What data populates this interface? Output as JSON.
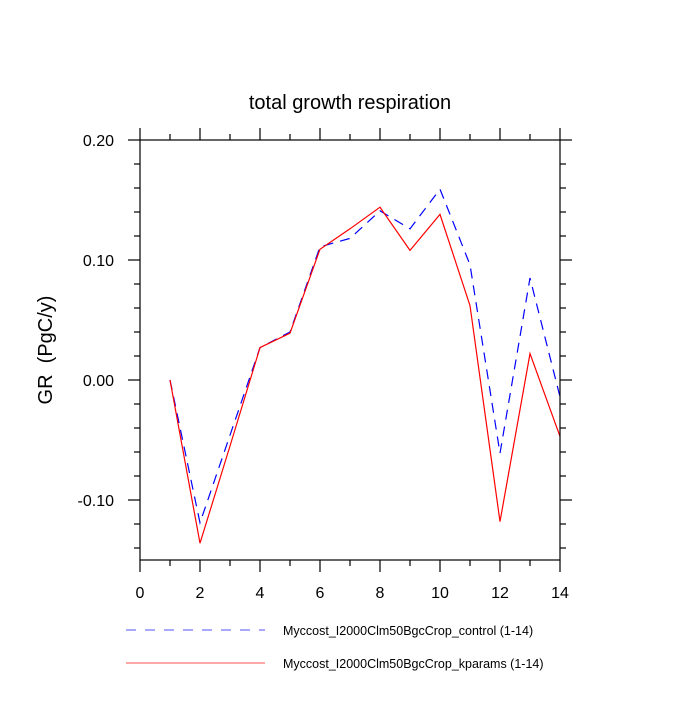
{
  "chart_data": {
    "type": "line",
    "title": "total growth respiration",
    "xlabel": "",
    "ylabel": "GR  (PgC/y)",
    "xlim": [
      0,
      14
    ],
    "ylim": [
      -0.15,
      0.2
    ],
    "x_major_ticks": [
      0,
      2,
      4,
      6,
      8,
      10,
      12,
      14
    ],
    "x_tick_labels": [
      "0",
      "2",
      "4",
      "6",
      "8",
      "10",
      "12",
      "14"
    ],
    "y_major_ticks": [
      0.2,
      0.1,
      0.0,
      -0.1
    ],
    "y_tick_labels": [
      "0.20",
      "0.10",
      "0.00",
      "-0.10"
    ],
    "grid": false,
    "legend_placement": "bottom",
    "x": [
      1,
      2,
      3,
      4,
      5,
      6,
      7,
      8,
      9,
      10,
      11,
      12,
      13,
      14
    ],
    "series": [
      {
        "name": "Myccost_I2000Clm50BgcCrop_control (1-14)",
        "color": "#0000ff",
        "dash": "dashed",
        "values": [
          0.0,
          -0.119,
          -0.046,
          0.027,
          0.04,
          0.111,
          0.118,
          0.141,
          0.126,
          0.159,
          0.096,
          -0.061,
          0.085,
          -0.014
        ]
      },
      {
        "name": "Myccost_I2000Clm50BgcCrop_kparams (1-14)",
        "color": "#ff0000",
        "dash": "solid",
        "values": [
          0.0,
          -0.136,
          -0.055,
          0.027,
          0.039,
          0.109,
          0.126,
          0.144,
          0.108,
          0.138,
          0.062,
          -0.118,
          0.022,
          -0.047
        ]
      }
    ]
  }
}
